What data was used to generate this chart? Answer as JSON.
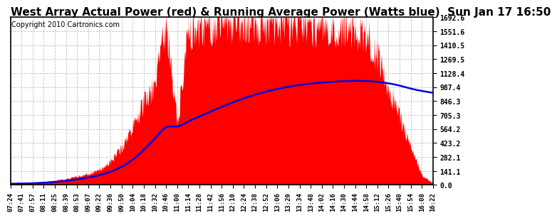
{
  "title": "West Array Actual Power (red) & Running Average Power (Watts blue)  Sun Jan 17 16:50",
  "copyright": "Copyright 2010 Cartronics.com",
  "ymax": 1692.6,
  "ymin": 0.0,
  "yticks": [
    0.0,
    141.1,
    282.1,
    423.2,
    564.2,
    705.3,
    846.3,
    987.4,
    1128.4,
    1269.5,
    1410.5,
    1551.6,
    1692.6
  ],
  "xtick_labels": [
    "07:24",
    "07:41",
    "07:57",
    "08:11",
    "08:25",
    "08:39",
    "08:53",
    "09:07",
    "09:22",
    "09:36",
    "09:50",
    "10:04",
    "10:18",
    "10:32",
    "10:46",
    "11:00",
    "11:14",
    "11:28",
    "11:42",
    "11:56",
    "12:10",
    "12:24",
    "12:38",
    "12:52",
    "13:06",
    "13:20",
    "13:34",
    "13:48",
    "14:02",
    "14:16",
    "14:30",
    "14:44",
    "14:58",
    "15:12",
    "15:26",
    "15:40",
    "15:54",
    "16:08",
    "16:22"
  ],
  "actual_power": [
    12,
    18,
    22,
    30,
    45,
    62,
    85,
    110,
    155,
    230,
    380,
    580,
    820,
    980,
    1680,
    600,
    1580,
    1610,
    1630,
    1640,
    1650,
    1648,
    1645,
    1638,
    1632,
    1628,
    1622,
    1618,
    1610,
    1605,
    1598,
    1590,
    1500,
    1280,
    980,
    680,
    380,
    95,
    18
  ],
  "avg_power": [
    12,
    14,
    17,
    22,
    30,
    41,
    56,
    74,
    98,
    133,
    183,
    255,
    355,
    470,
    580,
    590,
    640,
    690,
    740,
    788,
    833,
    874,
    910,
    942,
    968,
    990,
    1008,
    1022,
    1033,
    1041,
    1047,
    1050,
    1048,
    1040,
    1025,
    1002,
    972,
    948,
    930
  ],
  "red_color": "#FF0000",
  "blue_color": "#0000DD",
  "bg_color": "#FFFFFF",
  "grid_color": "#BBBBBB",
  "title_fontsize": 11,
  "copyright_fontsize": 7,
  "ytick_fontsize": 7,
  "xtick_fontsize": 6.5,
  "border_color": "#000000"
}
